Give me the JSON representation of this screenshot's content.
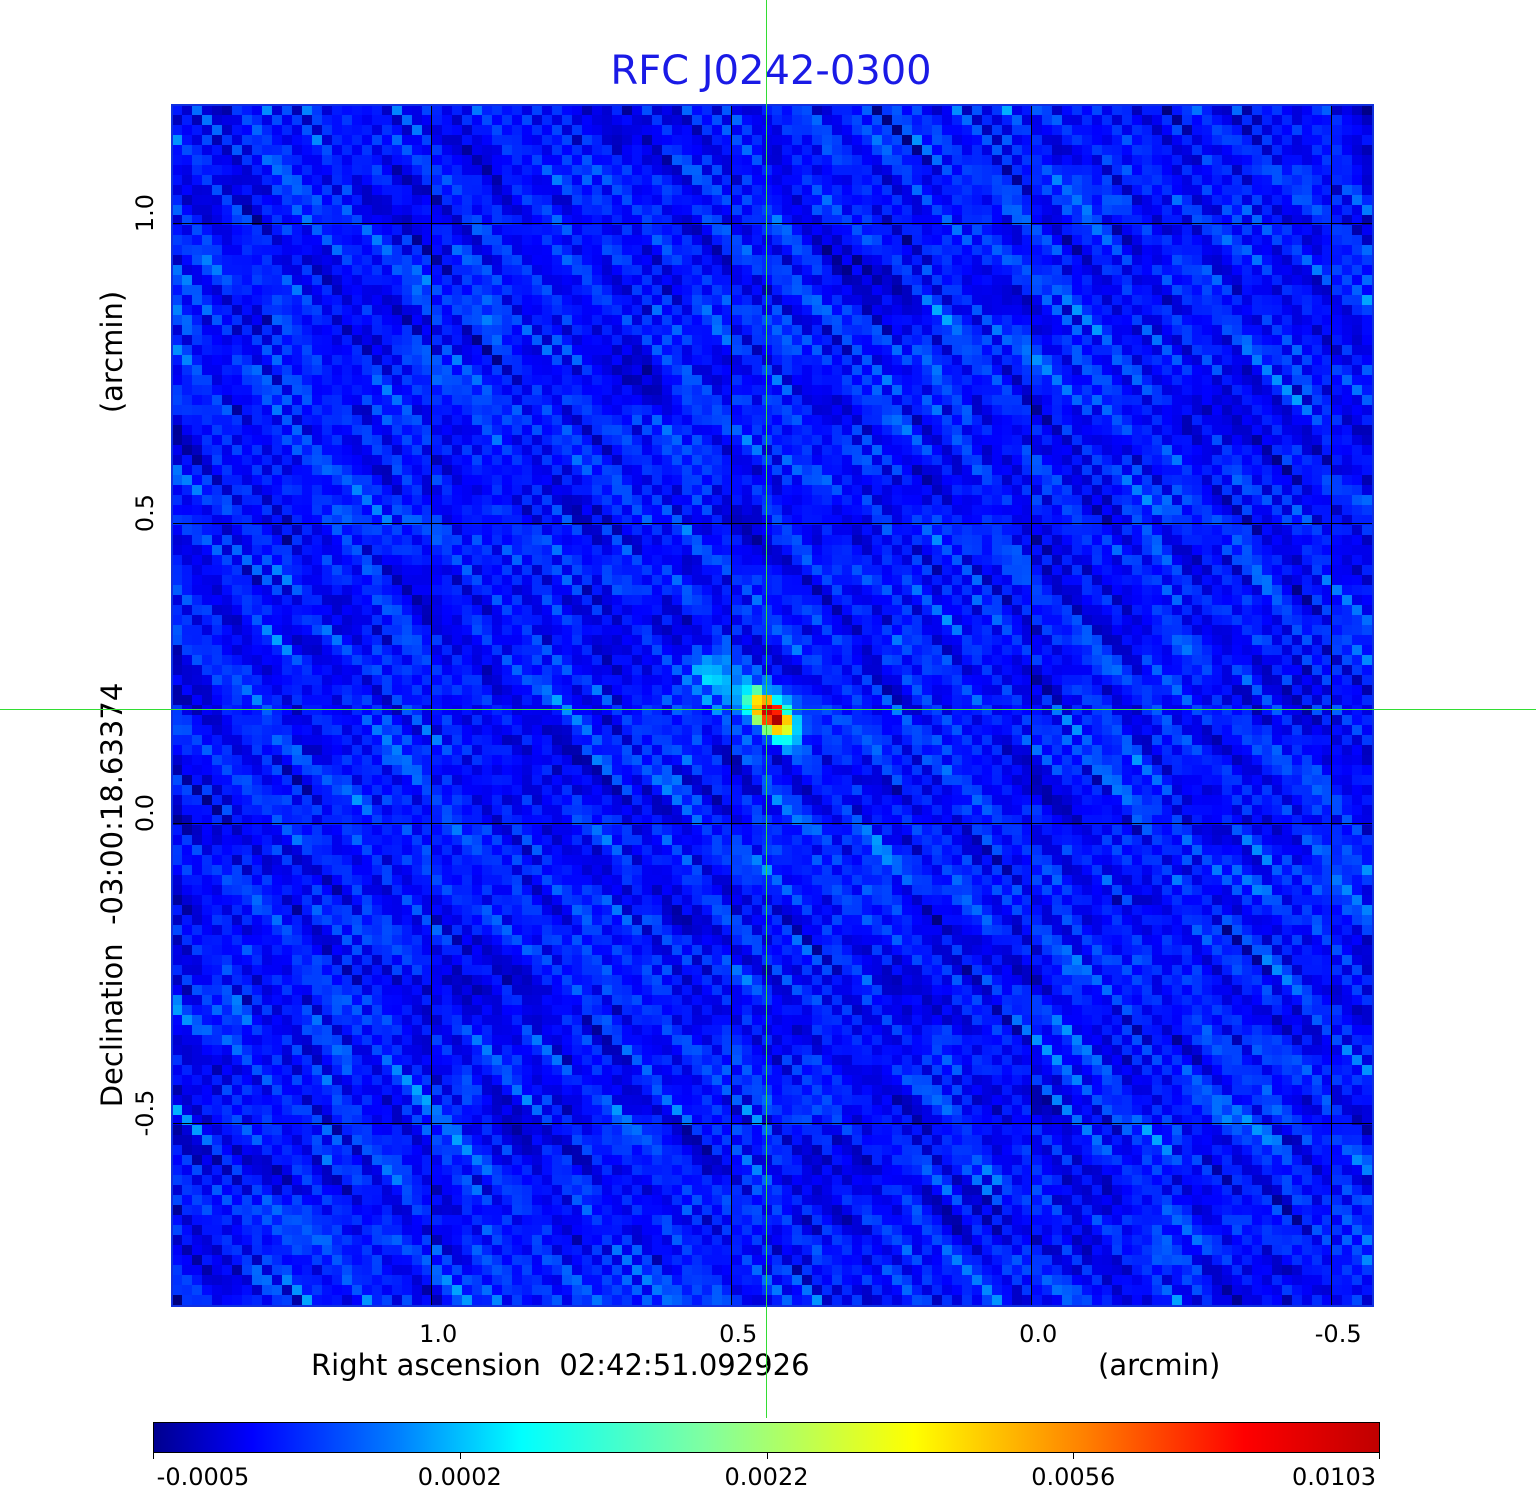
{
  "chart_data": {
    "type": "heatmap",
    "title": "RFC J0242-0300",
    "xlabel": "Right ascension  02:42:51.092926",
    "xunit": "(arcmin)",
    "ylabel": "Declination  -03:00:18.63374",
    "yunit": "(arcmin)",
    "xlim": [
      1.432,
      -0.568
    ],
    "ylim": [
      -0.803,
      1.197
    ],
    "xticks": [
      "1.0",
      "0.5",
      "0.0",
      "-0.5"
    ],
    "xtick_values": [
      1.0,
      0.5,
      0.0,
      -0.5
    ],
    "yticks": [
      "1.0",
      "0.5",
      "0.0",
      "-0.5"
    ],
    "ytick_values": [
      1.0,
      0.5,
      0.0,
      -0.5
    ],
    "grid": true,
    "colormap": "jet",
    "colorbar": {
      "ticks": [
        "-0.0005",
        "0.0002",
        "0.0022",
        "0.0056",
        "0.0103"
      ],
      "range": [
        -0.0005,
        0.0103
      ]
    },
    "source_peak": {
      "x": 0.44,
      "y": 0.19,
      "value": 0.0103
    },
    "crosshair": {
      "x": 0.442,
      "y": 0.19,
      "color": "#33dd33"
    },
    "title_color": "#1a1ae6"
  }
}
